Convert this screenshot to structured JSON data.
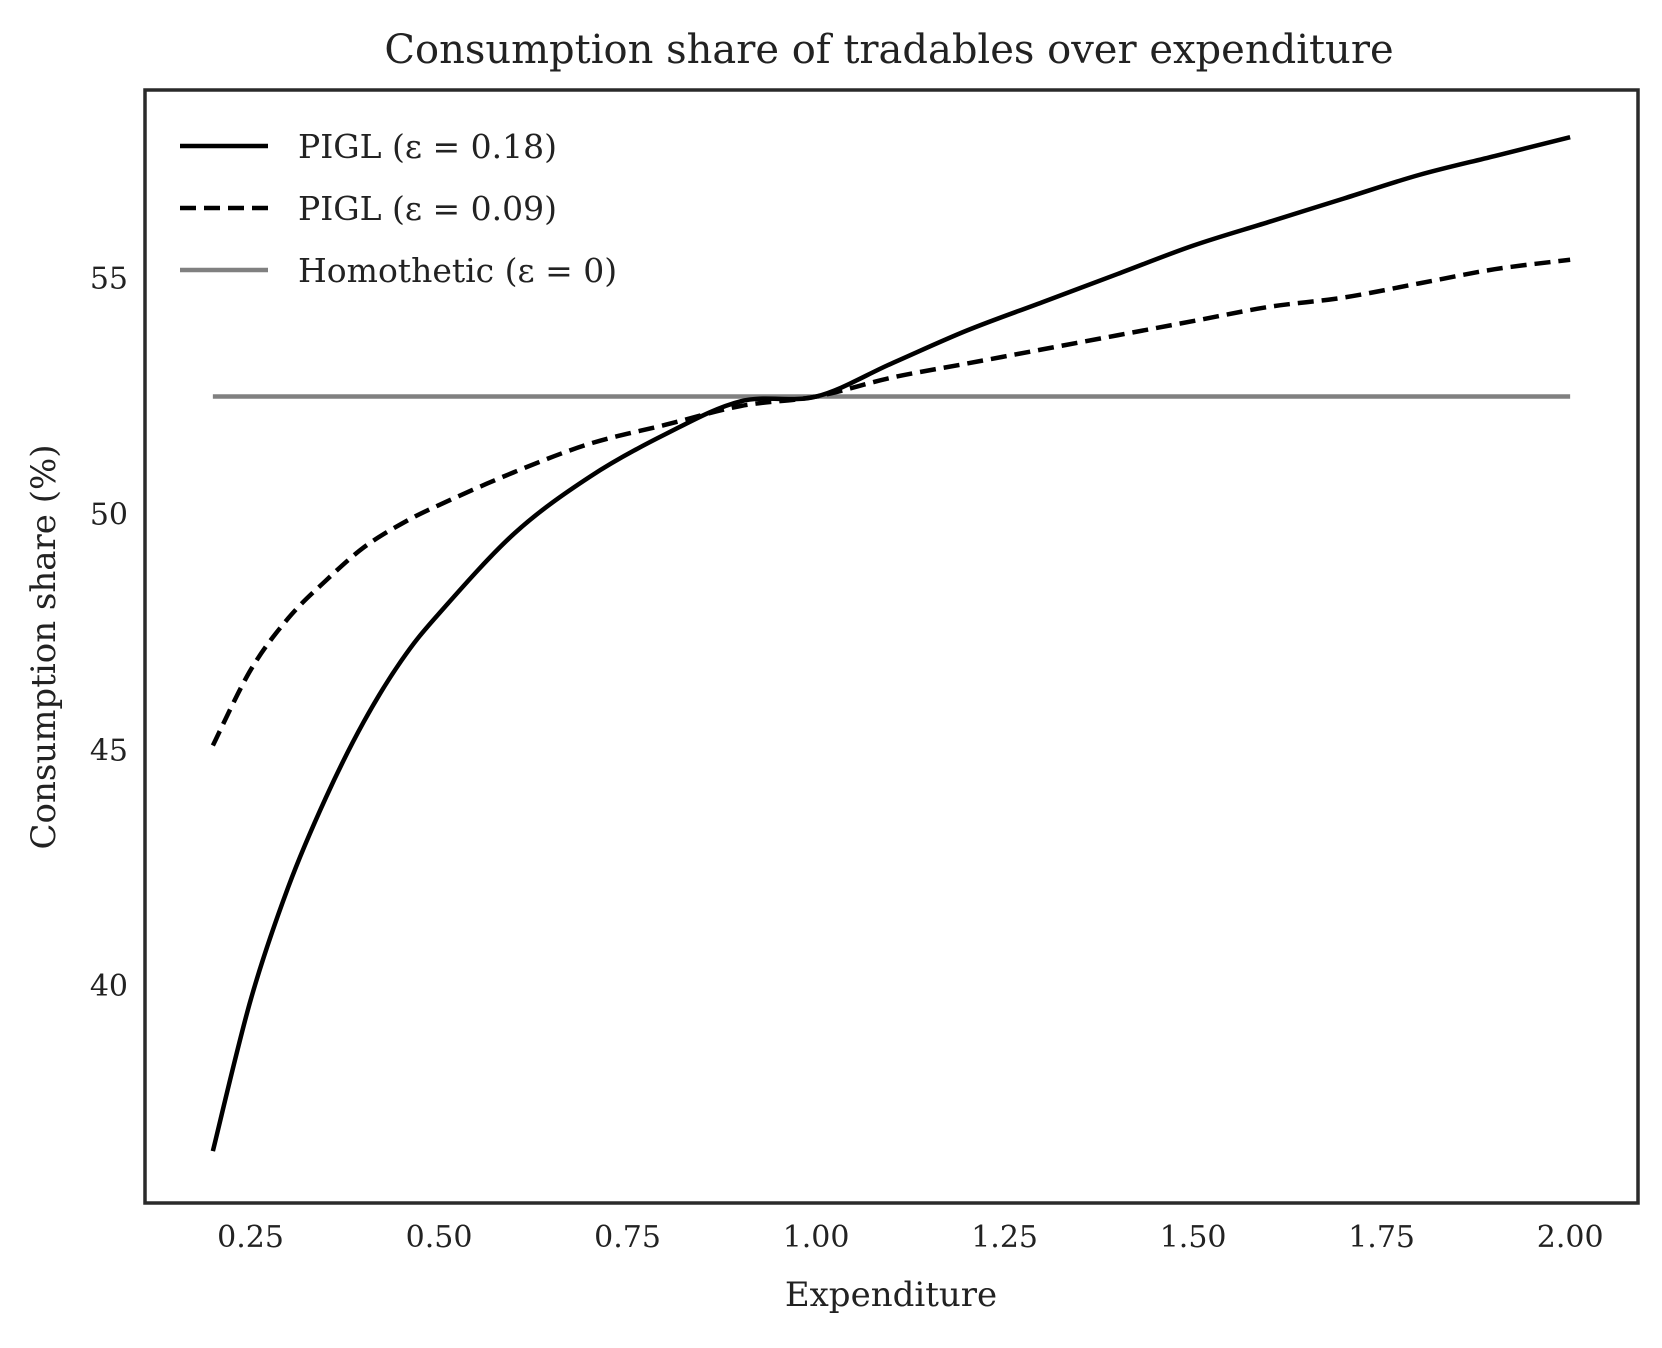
{
  "chart_data": {
    "type": "line",
    "title": "Consumption share of tradables over expenditure",
    "xlabel": "Expenditure",
    "ylabel": "Consumption share (%)",
    "xlim": [
      0.11,
      2.09
    ],
    "ylim": [
      35.4,
      59.0
    ],
    "xticks": [
      0.25,
      0.5,
      0.75,
      1.0,
      1.25,
      1.5,
      1.75,
      2.0
    ],
    "xtick_labels": [
      "0.25",
      "0.50",
      "0.75",
      "1.00",
      "1.25",
      "1.50",
      "1.75",
      "2.00"
    ],
    "yticks": [
      40,
      45,
      50,
      55
    ],
    "ytick_labels": [
      "40",
      "45",
      "50",
      "55"
    ],
    "grid": false,
    "legend_position": "top-left",
    "x": [
      0.2,
      0.25,
      0.3,
      0.35,
      0.4,
      0.45,
      0.5,
      0.6,
      0.7,
      0.8,
      0.9,
      1.0,
      1.1,
      1.2,
      1.3,
      1.4,
      1.5,
      1.6,
      1.7,
      1.8,
      1.9,
      2.0
    ],
    "series": [
      {
        "name": "PIGL (ε = 0.18)",
        "style": "solid",
        "color": "#000000",
        "values": [
          36.5,
          39.7,
          42.1,
          44.0,
          45.6,
          46.9,
          47.9,
          49.6,
          50.8,
          51.7,
          52.4,
          52.5,
          53.2,
          53.9,
          54.5,
          55.1,
          55.7,
          56.2,
          56.7,
          57.2,
          57.6,
          58.0
        ]
      },
      {
        "name": "PIGL (ε = 0.09)",
        "style": "dashed",
        "color": "#000000",
        "values": [
          45.1,
          46.7,
          47.8,
          48.6,
          49.3,
          49.8,
          50.2,
          50.9,
          51.5,
          51.9,
          52.3,
          52.5,
          52.9,
          53.2,
          53.5,
          53.8,
          54.1,
          54.4,
          54.6,
          54.9,
          55.2,
          55.4
        ]
      },
      {
        "name": "Homothetic (ε = 0)",
        "style": "solid",
        "color": "#808080",
        "values": [
          52.5,
          52.5,
          52.5,
          52.5,
          52.5,
          52.5,
          52.5,
          52.5,
          52.5,
          52.5,
          52.5,
          52.5,
          52.5,
          52.5,
          52.5,
          52.5,
          52.5,
          52.5,
          52.5,
          52.5,
          52.5,
          52.5
        ]
      }
    ]
  }
}
